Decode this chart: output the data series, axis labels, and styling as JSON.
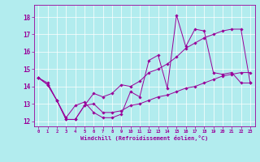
{
  "title": "",
  "xlabel": "Windchill (Refroidissement éolien,°C)",
  "ylabel": "",
  "bg_color": "#b2ecee",
  "line_color": "#990099",
  "grid_color": "#ffffff",
  "xlim": [
    -0.5,
    23.5
  ],
  "ylim": [
    11.7,
    18.7
  ],
  "yticks": [
    12,
    13,
    14,
    15,
    16,
    17,
    18
  ],
  "xticks": [
    0,
    1,
    2,
    3,
    4,
    5,
    6,
    7,
    8,
    9,
    10,
    11,
    12,
    13,
    14,
    15,
    16,
    17,
    18,
    19,
    20,
    21,
    22,
    23
  ],
  "series": [
    {
      "x": [
        0,
        1,
        2,
        3,
        4,
        5,
        6,
        7,
        8,
        9,
        10,
        11,
        12,
        13,
        14,
        15,
        16,
        17,
        18,
        19,
        20,
        21,
        22,
        23
      ],
      "y": [
        14.5,
        14.2,
        13.2,
        12.2,
        12.9,
        13.1,
        12.5,
        12.2,
        12.2,
        12.4,
        13.7,
        13.4,
        15.5,
        15.8,
        13.9,
        18.1,
        16.3,
        17.3,
        17.2,
        14.8,
        14.7,
        14.8,
        14.2,
        14.2
      ]
    },
    {
      "x": [
        0,
        1,
        2,
        3,
        4,
        5,
        6,
        7,
        8,
        9,
        10,
        11,
        12,
        13,
        14,
        15,
        16,
        17,
        18,
        19,
        20,
        21,
        22,
        23
      ],
      "y": [
        14.5,
        14.1,
        13.2,
        12.1,
        12.1,
        12.9,
        13.6,
        13.4,
        13.6,
        14.1,
        14.0,
        14.3,
        14.8,
        15.0,
        15.3,
        15.7,
        16.2,
        16.5,
        16.8,
        17.0,
        17.2,
        17.3,
        17.3,
        14.2
      ]
    },
    {
      "x": [
        0,
        1,
        2,
        3,
        4,
        5,
        6,
        7,
        8,
        9,
        10,
        11,
        12,
        13,
        14,
        15,
        16,
        17,
        18,
        19,
        20,
        21,
        22,
        23
      ],
      "y": [
        14.5,
        14.1,
        13.2,
        12.1,
        12.1,
        12.9,
        13.0,
        12.5,
        12.5,
        12.6,
        12.9,
        13.0,
        13.2,
        13.4,
        13.5,
        13.7,
        13.9,
        14.0,
        14.2,
        14.4,
        14.6,
        14.7,
        14.8,
        14.8
      ]
    }
  ]
}
